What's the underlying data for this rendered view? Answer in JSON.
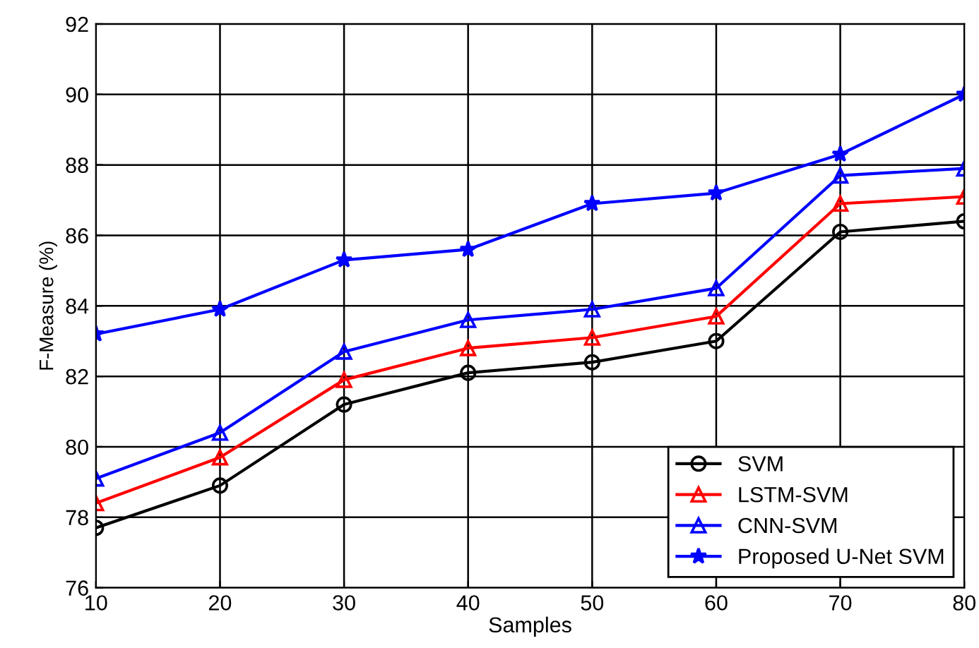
{
  "chart_data": {
    "type": "line",
    "xlabel": "Samples",
    "ylabel": "F-Measure (%)",
    "x": [
      10,
      20,
      30,
      40,
      50,
      60,
      70,
      80
    ],
    "series": [
      {
        "name": "SVM",
        "color": "#000000",
        "marker": "circle",
        "values": [
          77.7,
          78.9,
          81.2,
          82.1,
          82.4,
          83.0,
          86.1,
          86.4
        ]
      },
      {
        "name": "LSTM-SVM",
        "color": "#ff0000",
        "marker": "triangle",
        "values": [
          78.4,
          79.7,
          81.9,
          82.8,
          83.1,
          83.7,
          86.9,
          87.1
        ]
      },
      {
        "name": "CNN-SVM",
        "color": "#0000ff",
        "marker": "triangle",
        "values": [
          79.1,
          80.4,
          82.7,
          83.6,
          83.9,
          84.5,
          87.7,
          87.9
        ]
      },
      {
        "name": "Proposed U-Net SVM",
        "color": "#0000ff",
        "marker": "star",
        "values": [
          83.2,
          83.9,
          85.3,
          85.6,
          86.9,
          87.2,
          88.3,
          90.0
        ]
      }
    ],
    "xlim": [
      10,
      80
    ],
    "ylim": [
      76,
      92
    ],
    "xticks": [
      10,
      20,
      30,
      40,
      50,
      60,
      70,
      80
    ],
    "yticks": [
      76,
      78,
      80,
      82,
      84,
      86,
      88,
      90,
      92
    ],
    "grid": true,
    "legend": "bottom right",
    "line_style": "solid"
  }
}
